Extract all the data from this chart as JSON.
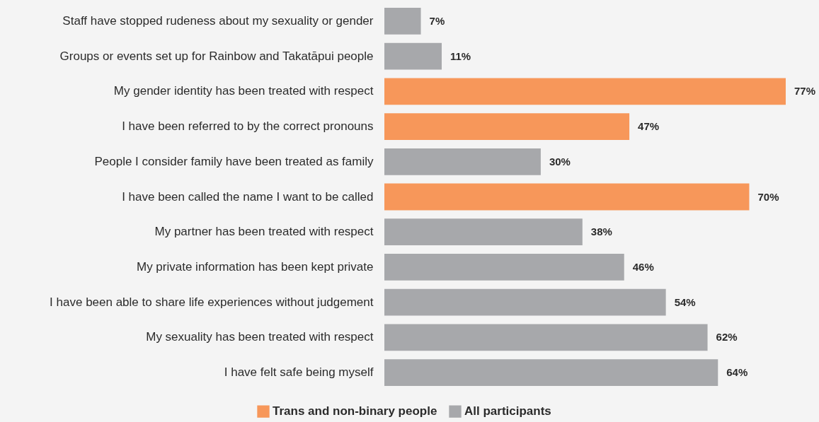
{
  "chart_data": {
    "type": "bar",
    "orientation": "horizontal",
    "legend": "bottom",
    "grid": false,
    "categories": [
      "Staff have stopped rudeness about my sexuality or gender",
      "Groups or events set up for Rainbow and Takatāpui people",
      "My gender identity has been treated with respect",
      "I have been referred to by the correct pronouns",
      "People I consider family have been treated as family",
      "I have been called the name I want to be called",
      "My partner has been treated with respect",
      "My private information has been kept private",
      "I have been able to share life experiences without judgement",
      "My sexuality has been treated with respect",
      "I have felt safe being myself"
    ],
    "series": [
      {
        "name": "Trans and non-binary people",
        "color": "#f7975a",
        "values": [
          null,
          null,
          77,
          47,
          null,
          70,
          null,
          null,
          null,
          null,
          null
        ],
        "value_labels": [
          null,
          null,
          "77%",
          "47%",
          null,
          "70%",
          null,
          null,
          null,
          null,
          null
        ]
      },
      {
        "name": "All participants",
        "color": "#a7a8ab",
        "values": [
          7,
          11,
          null,
          null,
          30,
          null,
          38,
          46,
          54,
          62,
          64
        ],
        "value_labels": [
          "7%",
          "11%",
          null,
          null,
          "30%",
          null,
          "38%",
          "46%",
          "54%",
          "62%",
          "64%"
        ]
      }
    ]
  }
}
